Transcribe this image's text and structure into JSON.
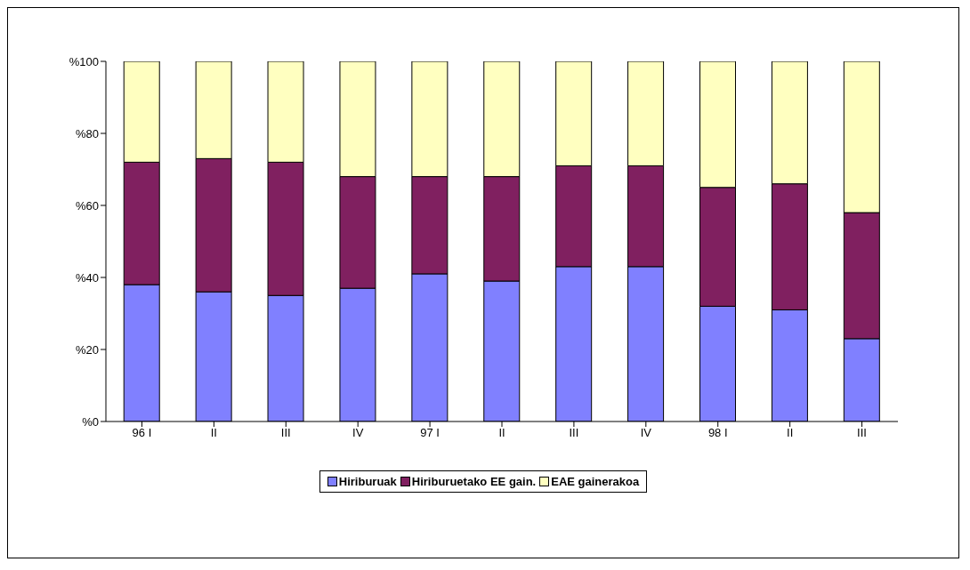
{
  "chart_data": {
    "type": "bar",
    "stacked": true,
    "categories": [
      "96 I",
      "II",
      "III",
      "IV",
      "97 I",
      "II",
      "III",
      "IV",
      "98 I",
      "II",
      "III"
    ],
    "series": [
      {
        "name": "Hiriburuak",
        "color": "#8080ff",
        "values": [
          38,
          36,
          35,
          37,
          41,
          39,
          43,
          43,
          32,
          31,
          23
        ]
      },
      {
        "name": "Hiriburuetako EE gain.",
        "color": "#802060",
        "values": [
          34,
          37,
          37,
          31,
          27,
          29,
          28,
          28,
          33,
          35,
          35
        ]
      },
      {
        "name": "EAE gainerakoa",
        "color": "#ffffc0",
        "values": [
          28,
          27,
          28,
          32,
          32,
          32,
          29,
          29,
          35,
          34,
          42
        ]
      }
    ],
    "ylim": [
      0,
      100
    ],
    "yticks": [
      {
        "value": 0,
        "label": "%0"
      },
      {
        "value": 20,
        "label": "%20"
      },
      {
        "value": 40,
        "label": "%40"
      },
      {
        "value": 60,
        "label": "%60"
      },
      {
        "value": 80,
        "label": "%80"
      },
      {
        "value": 100,
        "label": "%100"
      }
    ],
    "legend": "bottom"
  }
}
